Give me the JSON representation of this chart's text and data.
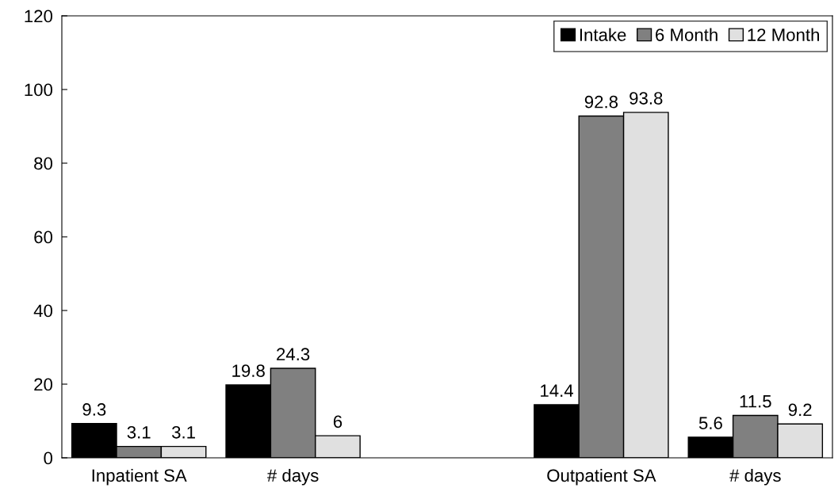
{
  "chart_data": {
    "type": "bar",
    "categories": [
      "Inpatient SA",
      "# days",
      null,
      "Outpatient SA",
      "# days"
    ],
    "series": [
      {
        "name": "Intake",
        "color": "#000000",
        "values": [
          9.3,
          19.8,
          null,
          14.4,
          5.6
        ]
      },
      {
        "name": "6 Month",
        "color": "#808080",
        "values": [
          3.1,
          24.3,
          null,
          92.8,
          11.5
        ]
      },
      {
        "name": "12 Month",
        "color": "#e0e0e0",
        "values": [
          3.1,
          6,
          null,
          93.8,
          9.2
        ]
      }
    ],
    "ylim": [
      0,
      120
    ],
    "yticks": [
      0,
      20,
      40,
      60,
      80,
      100,
      120
    ],
    "grid": false,
    "legend": "top right",
    "data_labels": true
  }
}
